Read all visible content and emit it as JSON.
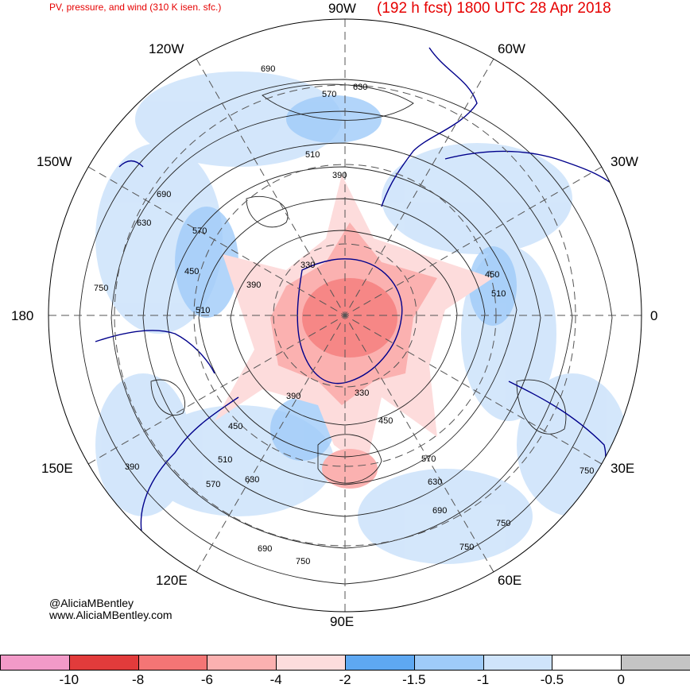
{
  "header": {
    "left_title": "PV, pressure, and wind (310 K isen. sfc.)",
    "right_title": "(192 h fcst) 1800 UTC 28 Apr 2018"
  },
  "longitude_labels": {
    "n": "90W",
    "s": "90E",
    "w": "180",
    "e": "0",
    "nw1": "120W",
    "nw2": "150W",
    "ne1": "60W",
    "ne2": "30W",
    "sw1": "150E",
    "sw2": "120E",
    "se1": "30E",
    "se2": "60E"
  },
  "contour_labels": [
    "690",
    "630",
    "570",
    "510",
    "390",
    "330",
    "450",
    "750",
    "690",
    "630",
    "570",
    "450",
    "390",
    "510",
    "330",
    "450",
    "390",
    "510",
    "570",
    "630",
    "690",
    "750",
    "750",
    "690",
    "750",
    "630",
    "570",
    "510",
    "450",
    "390",
    "750"
  ],
  "credits": {
    "handle": "@AliciaMBentley",
    "site": "www.AliciaMBentley.com"
  },
  "colorbar": {
    "colors": [
      "#f29ac8",
      "#e23b3b",
      "#f47575",
      "#fbb1b0",
      "#fddcdc",
      "#5ea8f2",
      "#9fcbf9",
      "#cfe4fb",
      "#ffffff",
      "#c4c4c4"
    ],
    "labels": [
      "-10",
      "-8",
      "-6",
      "-4",
      "-2",
      "-1.5",
      "-1",
      "-0.5",
      "0"
    ]
  }
}
